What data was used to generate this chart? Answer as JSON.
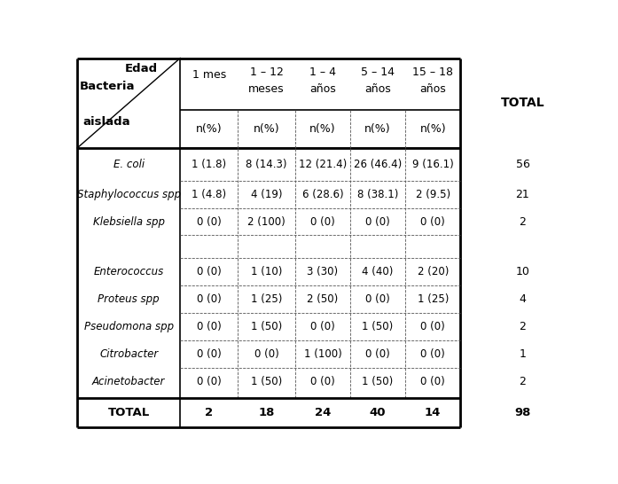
{
  "rows": [
    [
      "E. coli",
      "1 (1.8)",
      "8 (14.3)",
      "12 (21.4)",
      "26 (46.4)",
      "9 (16.1)",
      "56"
    ],
    [
      "Staphylococcus spp",
      "1 (4.8)",
      "4 (19)",
      "6 (28.6)",
      "8 (38.1)",
      "2 (9.5)",
      "21"
    ],
    [
      "Klebsiella spp",
      "0 (0)",
      "2 (100)",
      "0 (0)",
      "0 (0)",
      "0 (0)",
      "2"
    ],
    [
      "",
      "",
      "",
      "",
      "",
      "",
      ""
    ],
    [
      "Enterococcus",
      "0 (0)",
      "1 (10)",
      "3 (30)",
      "4 (40)",
      "2 (20)",
      "10"
    ],
    [
      "Proteus spp",
      "0 (0)",
      "1 (25)",
      "2 (50)",
      "0 (0)",
      "1 (25)",
      "4"
    ],
    [
      "Pseudomona spp",
      "0 (0)",
      "1 (50)",
      "0 (0)",
      "1 (50)",
      "0 (0)",
      "2"
    ],
    [
      "Citrobacter",
      "0 (0)",
      "0 (0)",
      "1 (100)",
      "0 (0)",
      "0 (0)",
      "1"
    ],
    [
      "Acinetobacter",
      "0 (0)",
      "1 (50)",
      "0 (0)",
      "1 (50)",
      "0 (0)",
      "2"
    ]
  ],
  "total_row": [
    "TOTAL",
    "2",
    "18",
    "24",
    "40",
    "14",
    "98"
  ],
  "col_h1": [
    "1 mes",
    "1 – 12",
    "1 – 4",
    "5 – 14",
    "15 – 18"
  ],
  "col_h2": [
    "",
    "meses",
    "años",
    "años",
    "años"
  ],
  "figsize": [
    6.97,
    5.46
  ],
  "dpi": 100
}
